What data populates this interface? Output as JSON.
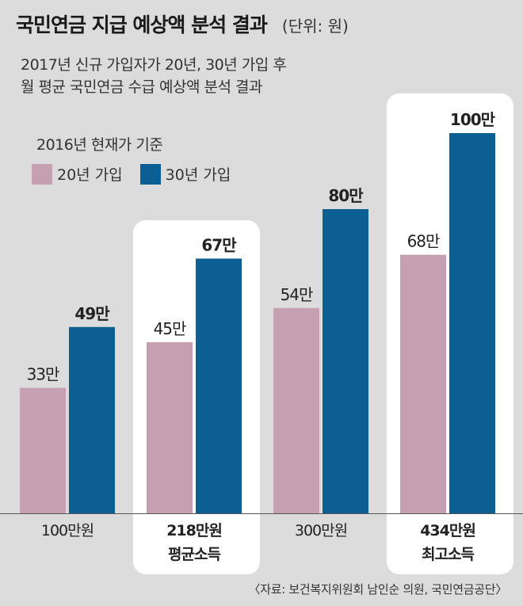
{
  "header": {
    "title": "국민연금 지급 예상액 분석 결과",
    "unit": "(단위: 원)",
    "subtitle_line1": "2017년 신규 가입자가 20년, 30년 가입 후",
    "subtitle_line2": "월 평균 국민연금 수급 예상액 분석 결과",
    "basis": "2016년 현재가 기준"
  },
  "source": "〈자료: 보건복지위원회 남인순 의원, 국민연금공단〉",
  "colors": {
    "background": "#dcdcdc",
    "highlight_panel": "#ffffff",
    "series_20yr": "#c4a0b0",
    "series_30yr": "#0b5f93"
  },
  "chart_data": {
    "type": "bar",
    "title": "국민연금 지급 예상액 분석 결과",
    "unit": "(단위: 원)",
    "categories": [
      {
        "label": "100만원",
        "sublabel": "",
        "highlight": false
      },
      {
        "label": "218만원",
        "sublabel": "평균소득",
        "highlight": true
      },
      {
        "label": "300만원",
        "sublabel": "",
        "highlight": false
      },
      {
        "label": "434만원",
        "sublabel": "최고소득",
        "highlight": true
      }
    ],
    "series": [
      {
        "name": "20년 가입",
        "values": [
          330000,
          450000,
          540000,
          680000
        ],
        "labels": [
          "33만",
          "45만",
          "54만",
          "68만"
        ]
      },
      {
        "name": "30년 가입",
        "values": [
          490000,
          670000,
          800000,
          1000000
        ],
        "labels": [
          "49만",
          "67만",
          "80만",
          "100만"
        ]
      }
    ],
    "legend_position": "top-left",
    "grid": false
  }
}
